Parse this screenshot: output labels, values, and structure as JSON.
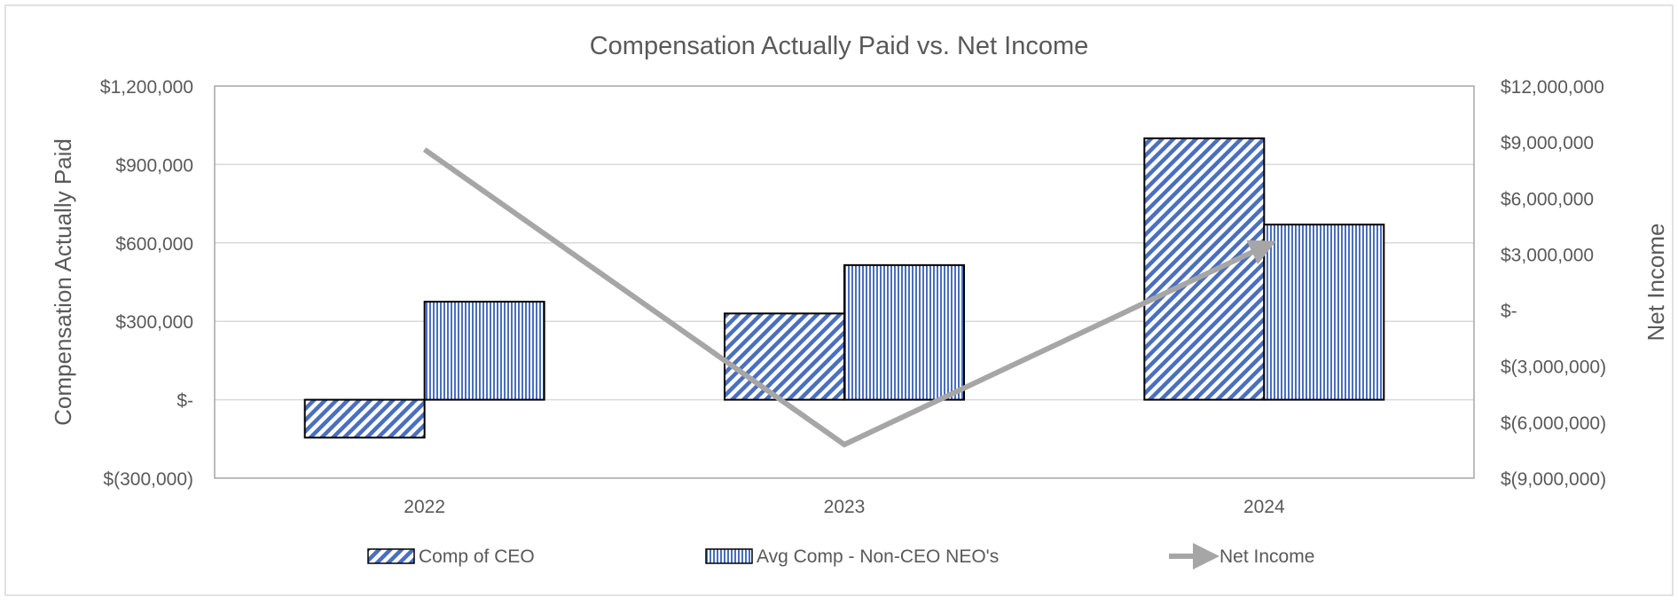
{
  "chart_data": {
    "type": "bar",
    "title": "Compensation Actually Paid vs. Net Income",
    "categories": [
      "2022",
      "2023",
      "2024"
    ],
    "y_left": {
      "label": "Compensation Actually Paid",
      "ylim": [
        -300000,
        1200000
      ],
      "ticks": [
        -300000,
        0,
        300000,
        600000,
        900000,
        1200000
      ],
      "tick_labels": [
        "$(300,000)",
        "$-",
        "$300,000",
        "$600,000",
        "$900,000",
        "$1,200,000"
      ]
    },
    "y_right": {
      "label": "Net Income",
      "ylim": [
        -9000000,
        12000000
      ],
      "ticks": [
        -9000000,
        -6000000,
        -3000000,
        0,
        3000000,
        6000000,
        9000000,
        12000000
      ],
      "tick_labels": [
        "$(9,000,000)",
        "$(6,000,000)",
        "$(3,000,000)",
        "$-",
        "$3,000,000",
        "$6,000,000",
        "$9,000,000",
        "$12,000,000"
      ]
    },
    "series": [
      {
        "name": "Comp of CEO",
        "type": "bar",
        "axis": "left",
        "pattern": "diagonal",
        "values": [
          -145000,
          330000,
          1000000
        ]
      },
      {
        "name": "Avg Comp - Non-CEO NEO's",
        "type": "bar",
        "axis": "left",
        "pattern": "vertical",
        "values": [
          375000,
          515000,
          670000
        ]
      },
      {
        "name": "Net Income",
        "type": "line",
        "axis": "right",
        "values": [
          8600000,
          -7200000,
          3400000
        ]
      }
    ],
    "grid": true,
    "legend": "bottom",
    "colors": {
      "bar_pattern": "#4a6fbf",
      "bar_border": "#000000",
      "line": "#a6a6a6",
      "grid": "#d9d9d9",
      "axis_text": "#595959",
      "frame": "#d9d9d9"
    }
  }
}
